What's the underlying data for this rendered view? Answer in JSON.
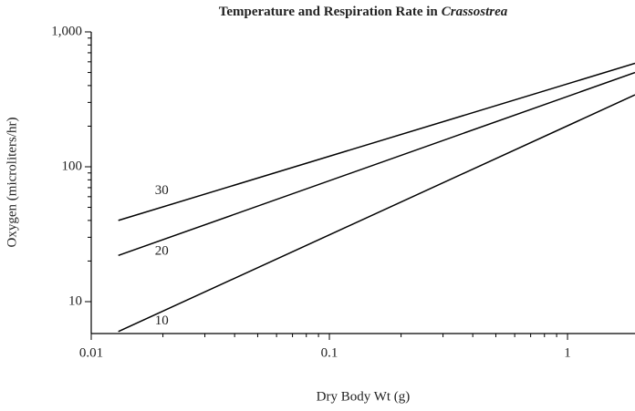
{
  "chart_data": {
    "type": "line",
    "title": "Temperature and Respiration Rate in",
    "title_italic": "Crassostrea",
    "xlabel": "Dry Body Wt (g)",
    "ylabel": "Oxygen (microliters/hr)",
    "xscale": "log",
    "yscale": "log",
    "xlim": [
      0.01,
      1.92
    ],
    "ylim": [
      5.8,
      1000
    ],
    "xticks": [
      0.01,
      0.1,
      1
    ],
    "xticks_minor": [
      0.02,
      0.03,
      0.04,
      0.05,
      0.06,
      0.07,
      0.08,
      0.09,
      0.2,
      0.3,
      0.4,
      0.5,
      0.6,
      0.7,
      0.8,
      0.9
    ],
    "yticks": [
      10,
      100,
      {
        "value": 1000,
        "label": "1,000"
      }
    ],
    "yticks_minor": [
      20,
      30,
      40,
      50,
      60,
      70,
      80,
      90,
      200,
      300,
      400,
      500,
      600,
      700,
      800,
      900
    ],
    "x": [
      0.013,
      1.92
    ],
    "series": [
      {
        "name": "30",
        "color": "#000000",
        "values": [
          40,
          585
        ]
      },
      {
        "name": "20",
        "color": "#000000",
        "values": [
          22,
          500
        ]
      },
      {
        "name": "10",
        "color": "#000000",
        "values": [
          6,
          341
        ]
      }
    ]
  }
}
